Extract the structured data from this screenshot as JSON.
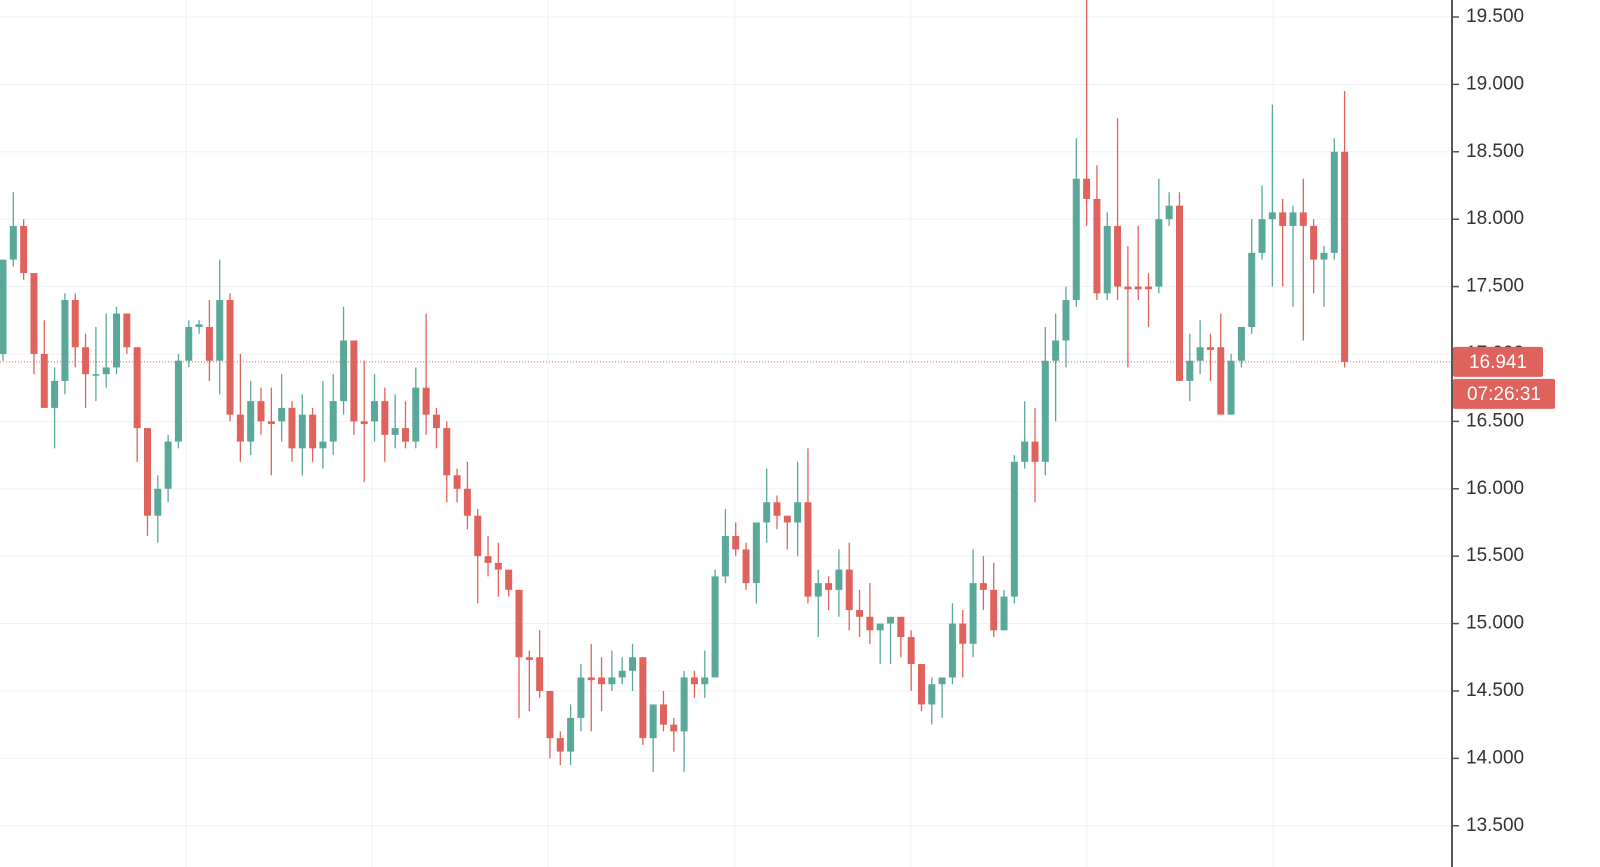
{
  "chart_data": {
    "type": "candlestick",
    "up_color": "#5aa89a",
    "down_color": "#e0625c",
    "ylim": [
      13.194,
      19.626
    ],
    "yticks": [
      {
        "value": 13.5,
        "label": "13.500"
      },
      {
        "value": 14,
        "label": "14.000"
      },
      {
        "value": 14.5,
        "label": "14.500"
      },
      {
        "value": 15,
        "label": "15.000"
      },
      {
        "value": 15.5,
        "label": "15.500"
      },
      {
        "value": 16,
        "label": "16.000"
      },
      {
        "value": 16.5,
        "label": "16.500"
      },
      {
        "value": 17,
        "label": "17.000"
      },
      {
        "value": 17.5,
        "label": "17.500"
      },
      {
        "value": 18,
        "label": "18.000"
      },
      {
        "value": 18.5,
        "label": "18.500"
      },
      {
        "value": 19,
        "label": "19.000"
      },
      {
        "value": 19.5,
        "label": "19.500"
      }
    ],
    "grid": true,
    "last_price": {
      "value": 16.941,
      "label": "16.941"
    },
    "countdown": "07:26:31",
    "candles": [
      [
        17.0,
        17.7,
        16.95,
        17.7
      ],
      [
        17.7,
        18.2,
        17.65,
        17.95
      ],
      [
        17.95,
        18.0,
        17.55,
        17.6
      ],
      [
        17.6,
        17.6,
        16.85,
        17.0
      ],
      [
        17.0,
        17.25,
        16.6,
        16.6
      ],
      [
        16.6,
        16.9,
        16.3,
        16.8
      ],
      [
        16.8,
        17.45,
        16.7,
        17.4
      ],
      [
        17.4,
        17.45,
        16.9,
        17.05
      ],
      [
        17.05,
        17.15,
        16.6,
        16.85
      ],
      [
        16.85,
        17.2,
        16.65,
        16.85
      ],
      [
        16.85,
        17.3,
        16.75,
        16.9
      ],
      [
        16.9,
        17.35,
        16.85,
        17.3
      ],
      [
        17.3,
        17.3,
        17.0,
        17.05
      ],
      [
        17.05,
        17.05,
        16.2,
        16.45
      ],
      [
        16.45,
        16.45,
        15.65,
        15.8
      ],
      [
        15.8,
        16.1,
        15.6,
        16.0
      ],
      [
        16.0,
        16.4,
        15.9,
        16.35
      ],
      [
        16.35,
        17.0,
        16.3,
        16.95
      ],
      [
        16.95,
        17.25,
        16.9,
        17.2
      ],
      [
        17.2,
        17.25,
        17.15,
        17.22
      ],
      [
        17.2,
        17.4,
        16.8,
        16.95
      ],
      [
        16.95,
        17.7,
        16.7,
        17.4
      ],
      [
        17.4,
        17.45,
        16.5,
        16.55
      ],
      [
        16.55,
        17.0,
        16.2,
        16.35
      ],
      [
        16.35,
        16.8,
        16.25,
        16.65
      ],
      [
        16.65,
        16.75,
        16.4,
        16.5
      ],
      [
        16.5,
        16.75,
        16.1,
        16.48
      ],
      [
        16.5,
        16.85,
        16.35,
        16.6
      ],
      [
        16.6,
        16.65,
        16.2,
        16.3
      ],
      [
        16.3,
        16.7,
        16.1,
        16.55
      ],
      [
        16.55,
        16.6,
        16.2,
        16.3
      ],
      [
        16.3,
        16.8,
        16.15,
        16.35
      ],
      [
        16.35,
        16.85,
        16.25,
        16.65
      ],
      [
        16.65,
        17.35,
        16.55,
        17.1
      ],
      [
        17.1,
        17.1,
        16.4,
        16.5
      ],
      [
        16.5,
        16.95,
        16.05,
        16.48
      ],
      [
        16.5,
        16.85,
        16.35,
        16.65
      ],
      [
        16.65,
        16.75,
        16.2,
        16.4
      ],
      [
        16.4,
        16.7,
        16.3,
        16.45
      ],
      [
        16.45,
        16.65,
        16.3,
        16.35
      ],
      [
        16.35,
        16.9,
        16.3,
        16.75
      ],
      [
        16.75,
        17.3,
        16.4,
        16.55
      ],
      [
        16.55,
        16.6,
        16.3,
        16.45
      ],
      [
        16.45,
        16.5,
        15.9,
        16.1
      ],
      [
        16.1,
        16.15,
        15.9,
        16.0
      ],
      [
        16.0,
        16.2,
        15.7,
        15.8
      ],
      [
        15.8,
        15.85,
        15.15,
        15.5
      ],
      [
        15.5,
        15.65,
        15.35,
        15.45
      ],
      [
        15.45,
        15.6,
        15.2,
        15.4
      ],
      [
        15.4,
        15.4,
        15.2,
        15.25
      ],
      [
        15.25,
        15.25,
        14.3,
        14.75
      ],
      [
        14.75,
        14.8,
        14.35,
        14.73
      ],
      [
        14.75,
        14.95,
        14.45,
        14.5
      ],
      [
        14.5,
        14.5,
        14.0,
        14.15
      ],
      [
        14.15,
        14.2,
        13.95,
        14.05
      ],
      [
        14.05,
        14.4,
        13.95,
        14.3
      ],
      [
        14.3,
        14.7,
        14.2,
        14.6
      ],
      [
        14.6,
        14.85,
        14.2,
        14.58
      ],
      [
        14.6,
        14.75,
        14.35,
        14.55
      ],
      [
        14.55,
        14.8,
        14.5,
        14.6
      ],
      [
        14.6,
        14.75,
        14.55,
        14.65
      ],
      [
        14.65,
        14.85,
        14.5,
        14.75
      ],
      [
        14.75,
        14.75,
        14.1,
        14.15
      ],
      [
        14.15,
        14.4,
        13.9,
        14.4
      ],
      [
        14.4,
        14.5,
        14.2,
        14.25
      ],
      [
        14.25,
        14.3,
        14.05,
        14.2
      ],
      [
        14.2,
        14.65,
        13.9,
        14.6
      ],
      [
        14.6,
        14.65,
        14.45,
        14.55
      ],
      [
        14.55,
        14.8,
        14.45,
        14.6
      ],
      [
        14.6,
        15.4,
        14.6,
        15.35
      ],
      [
        15.35,
        15.85,
        15.3,
        15.65
      ],
      [
        15.65,
        15.75,
        15.5,
        15.55
      ],
      [
        15.55,
        15.6,
        15.25,
        15.3
      ],
      [
        15.3,
        15.75,
        15.15,
        15.75
      ],
      [
        15.75,
        16.15,
        15.6,
        15.9
      ],
      [
        15.9,
        15.95,
        15.7,
        15.8
      ],
      [
        15.8,
        15.8,
        15.55,
        15.75
      ],
      [
        15.75,
        16.2,
        15.5,
        15.9
      ],
      [
        15.9,
        16.3,
        15.15,
        15.2
      ],
      [
        15.2,
        15.4,
        14.9,
        15.3
      ],
      [
        15.3,
        15.35,
        15.1,
        15.25
      ],
      [
        15.25,
        15.55,
        15.05,
        15.4
      ],
      [
        15.4,
        15.6,
        14.95,
        15.1
      ],
      [
        15.1,
        15.25,
        14.9,
        15.05
      ],
      [
        15.05,
        15.3,
        14.85,
        14.95
      ],
      [
        14.95,
        15.0,
        14.7,
        15.0
      ],
      [
        15.0,
        15.05,
        14.7,
        15.05
      ],
      [
        15.05,
        15.05,
        14.75,
        14.9
      ],
      [
        14.9,
        14.95,
        14.5,
        14.7
      ],
      [
        14.7,
        14.7,
        14.35,
        14.4
      ],
      [
        14.4,
        14.6,
        14.25,
        14.55
      ],
      [
        14.55,
        14.6,
        14.3,
        14.6
      ],
      [
        14.6,
        15.15,
        14.55,
        15.0
      ],
      [
        15.0,
        15.1,
        14.6,
        14.85
      ],
      [
        14.85,
        15.55,
        14.75,
        15.3
      ],
      [
        15.3,
        15.5,
        15.1,
        15.25
      ],
      [
        15.25,
        15.45,
        14.9,
        14.95
      ],
      [
        14.95,
        15.25,
        14.95,
        15.2
      ],
      [
        15.2,
        16.25,
        15.15,
        16.2
      ],
      [
        16.2,
        16.65,
        16.15,
        16.35
      ],
      [
        16.35,
        16.6,
        15.9,
        16.2
      ],
      [
        16.2,
        17.2,
        16.1,
        16.95
      ],
      [
        16.95,
        17.3,
        16.5,
        17.1
      ],
      [
        17.1,
        17.5,
        16.9,
        17.4
      ],
      [
        17.4,
        18.6,
        17.35,
        18.3
      ],
      [
        18.3,
        19.65,
        17.95,
        18.15
      ],
      [
        18.15,
        18.4,
        17.4,
        17.45
      ],
      [
        17.45,
        18.05,
        17.4,
        17.95
      ],
      [
        17.95,
        18.75,
        17.4,
        17.5
      ],
      [
        17.5,
        17.8,
        16.9,
        17.48
      ],
      [
        17.5,
        17.95,
        17.4,
        17.48
      ],
      [
        17.5,
        17.6,
        17.2,
        17.48
      ],
      [
        17.5,
        18.3,
        17.45,
        18.0
      ],
      [
        18.0,
        18.2,
        17.95,
        18.1
      ],
      [
        18.1,
        18.2,
        16.8,
        16.8
      ],
      [
        16.8,
        17.15,
        16.65,
        16.95
      ],
      [
        16.95,
        17.25,
        16.85,
        17.05
      ],
      [
        17.05,
        17.15,
        16.8,
        17.03
      ],
      [
        17.05,
        17.3,
        16.55,
        16.55
      ],
      [
        16.55,
        17.0,
        16.55,
        16.95
      ],
      [
        16.95,
        17.2,
        16.9,
        17.2
      ],
      [
        17.2,
        18.0,
        17.15,
        17.75
      ],
      [
        17.75,
        18.25,
        17.7,
        18.0
      ],
      [
        18.0,
        18.85,
        17.5,
        18.05
      ],
      [
        18.05,
        18.15,
        17.5,
        17.95
      ],
      [
        17.95,
        18.1,
        17.35,
        18.05
      ],
      [
        18.05,
        18.3,
        17.1,
        17.95
      ],
      [
        17.95,
        18.0,
        17.45,
        17.7
      ],
      [
        17.7,
        17.8,
        17.35,
        17.75
      ],
      [
        17.75,
        18.6,
        17.7,
        18.5
      ],
      [
        18.5,
        18.95,
        16.9,
        16.941
      ]
    ]
  }
}
